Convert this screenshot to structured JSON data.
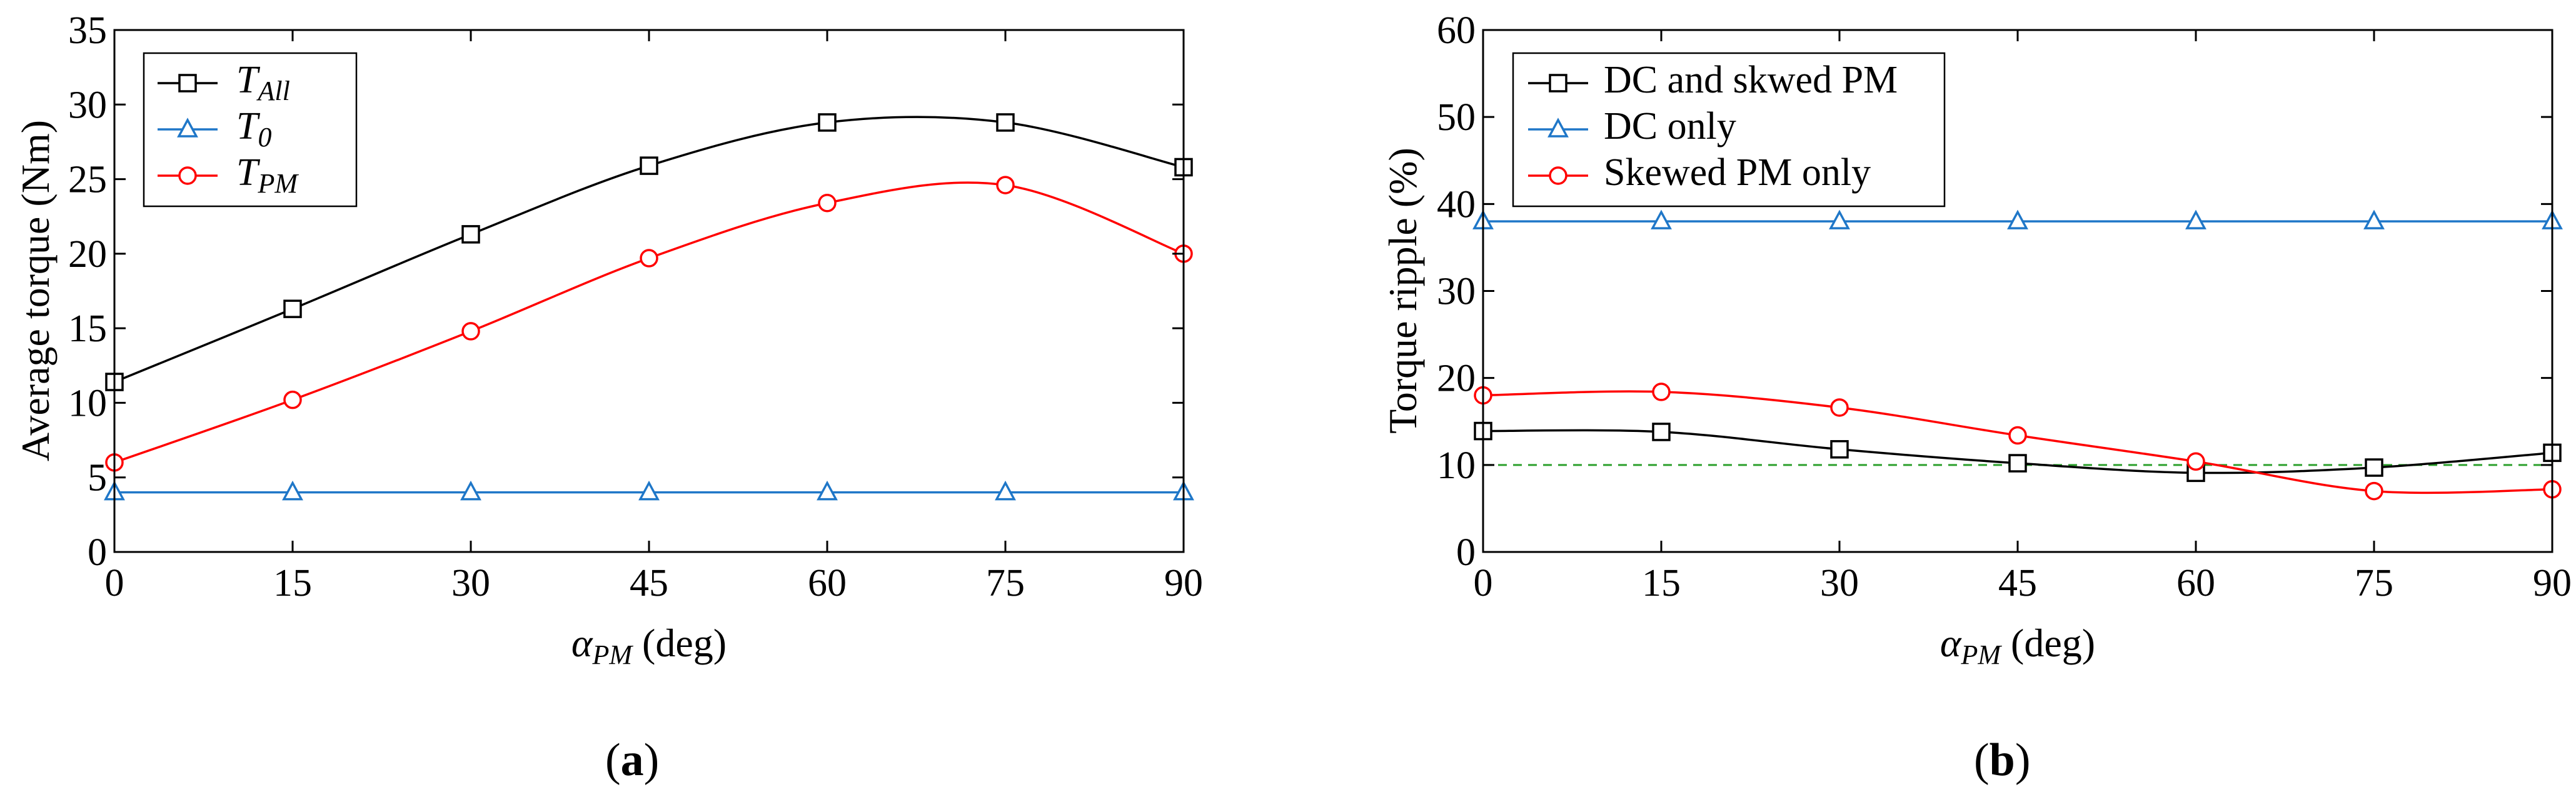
{
  "chart_data": [
    {
      "id": "a",
      "type": "line",
      "panel_label": {
        "open": "(",
        "letter": "a",
        "close": ")"
      },
      "xlabel": {
        "symbol": "α",
        "sub": "PM",
        "unit": " (deg)"
      },
      "ylabel": "Average torque (Nm)",
      "x": [
        0,
        15,
        30,
        45,
        60,
        75,
        90
      ],
      "xlim": [
        0,
        90
      ],
      "ylim": [
        0,
        35
      ],
      "xticks": [
        "0",
        "15",
        "30",
        "45",
        "60",
        "75",
        "90"
      ],
      "yticks": [
        "0",
        "5",
        "10",
        "15",
        "20",
        "25",
        "30",
        "35"
      ],
      "legend_position": "top-left",
      "series": [
        {
          "key": "all",
          "name": {
            "main": "T",
            "sub": "All"
          },
          "marker": "square",
          "color": "#000000",
          "values": [
            11.4,
            16.3,
            21.3,
            25.9,
            28.8,
            28.8,
            25.8
          ]
        },
        {
          "key": "t0",
          "name": {
            "main": "T",
            "sub": "0"
          },
          "marker": "triangle",
          "color": "#1f77c8",
          "values": [
            4.0,
            4.0,
            4.0,
            4.0,
            4.0,
            4.0,
            4.0
          ]
        },
        {
          "key": "pm",
          "name": {
            "main": "T",
            "sub": "PM"
          },
          "marker": "circle",
          "color": "#ff0000",
          "values": [
            6.0,
            10.2,
            14.8,
            19.7,
            23.4,
            24.6,
            20.0
          ]
        }
      ]
    },
    {
      "id": "b",
      "type": "line",
      "panel_label": {
        "open": "(",
        "letter": "b",
        "close": ")"
      },
      "xlabel": {
        "symbol": "α",
        "sub": "PM",
        "unit": " (deg)"
      },
      "ylabel": "Torque ripple (%)",
      "x": [
        0,
        15,
        30,
        45,
        60,
        75,
        90
      ],
      "xlim": [
        0,
        90
      ],
      "ylim": [
        0,
        60
      ],
      "xticks": [
        "0",
        "15",
        "30",
        "45",
        "60",
        "75",
        "90"
      ],
      "yticks": [
        "0",
        "10",
        "20",
        "30",
        "40",
        "50",
        "60"
      ],
      "legend_position": "top-left",
      "reference_line": {
        "y": 10,
        "color": "#2ca02c",
        "style": "dashed"
      },
      "series": [
        {
          "key": "dcpm",
          "name": {
            "main": "DC and skwed PM",
            "sub": ""
          },
          "marker": "square",
          "color": "#000000",
          "values": [
            13.9,
            13.8,
            11.8,
            10.2,
            9.1,
            9.7,
            11.4
          ]
        },
        {
          "key": "dc",
          "name": {
            "main": "DC only",
            "sub": ""
          },
          "marker": "triangle",
          "color": "#1f77c8",
          "values": [
            38.0,
            38.0,
            38.0,
            38.0,
            38.0,
            38.0,
            38.0
          ]
        },
        {
          "key": "skpm",
          "name": {
            "main": "Skewed PM only",
            "sub": ""
          },
          "marker": "circle",
          "color": "#ff0000",
          "values": [
            18.0,
            18.4,
            16.6,
            13.4,
            10.4,
            7.0,
            7.2
          ]
        }
      ]
    }
  ]
}
